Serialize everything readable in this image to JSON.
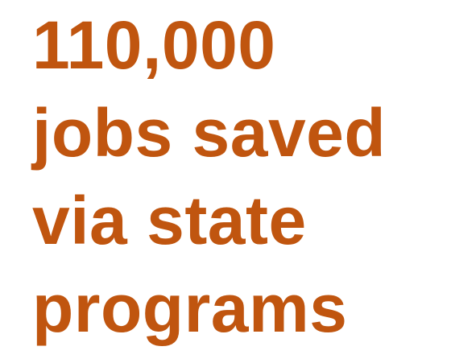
{
  "headline": {
    "lines": [
      "110,000",
      "jobs saved",
      "via state",
      "programs"
    ]
  },
  "colors": {
    "text": "#c0550f",
    "background": "#ffffff"
  }
}
